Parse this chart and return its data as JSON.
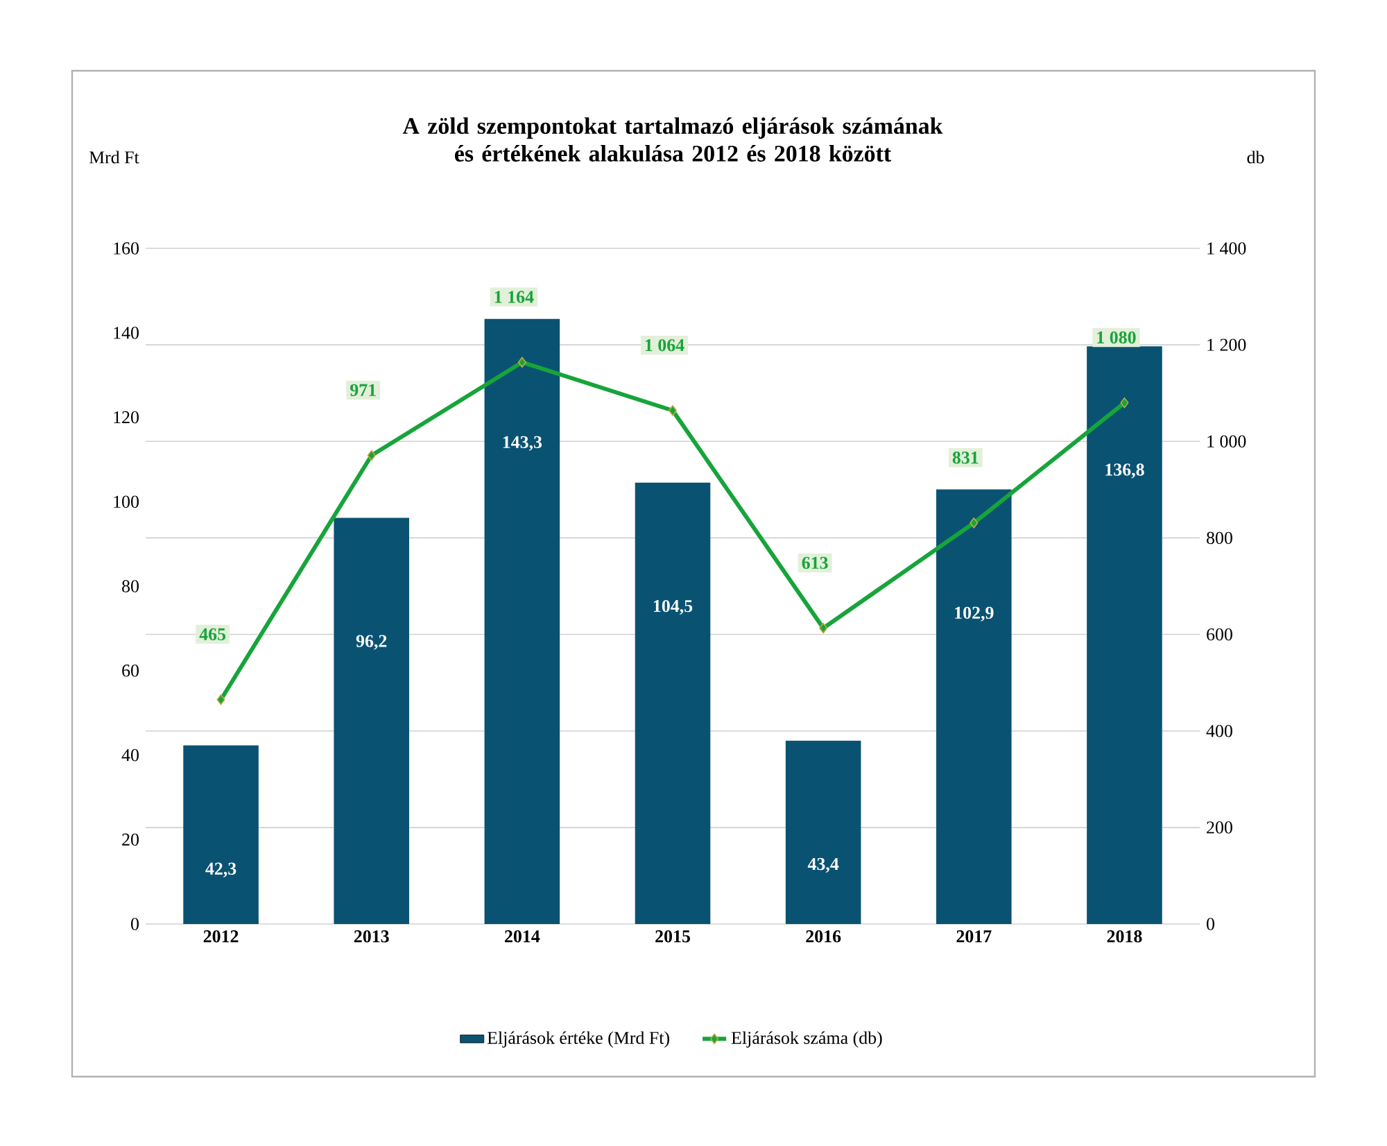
{
  "chart_data": {
    "type": "bar",
    "title": "A zöld szempontokat tartalmazó eljárások számának és értékének alakulása 2012 és 2018 között",
    "ylabel": "Mrd Ft",
    "y2label": "db",
    "categories": [
      "2012",
      "2013",
      "2014",
      "2015",
      "2016",
      "2017",
      "2018"
    ],
    "series": [
      {
        "name": "Eljárások értéke (Mrd Ft)",
        "color": "#0a5272",
        "values": [
          42.3,
          96.2,
          143.3,
          104.5,
          43.4,
          102.9,
          136.8
        ],
        "value_labels": [
          "42,3",
          "96,2",
          "143,3",
          "104,5",
          "43,4",
          "102,9",
          "136,8"
        ]
      },
      {
        "name": "Eljárások száma (db)",
        "type": "line",
        "axis": "y2",
        "color": "#17a43b",
        "values": [
          465,
          971,
          1164,
          1064,
          613,
          831,
          1080
        ],
        "value_labels": [
          "465",
          "971",
          "1 164",
          "1 064",
          "613",
          "831",
          "1 080"
        ]
      }
    ],
    "ylim": [
      0,
      160
    ],
    "yticks": [
      0,
      20,
      40,
      60,
      80,
      100,
      120,
      140,
      160
    ],
    "y2lim": [
      0,
      1400
    ],
    "y2ticks": [
      0,
      200,
      400,
      600,
      800,
      {
        "value": 1000,
        "label": "1 000"
      },
      {
        "value": 1200,
        "label": "1 200"
      },
      {
        "value": 1400,
        "label": "1 400"
      }
    ],
    "grid": true,
    "legend": "bottom",
    "marker": "diamond"
  }
}
